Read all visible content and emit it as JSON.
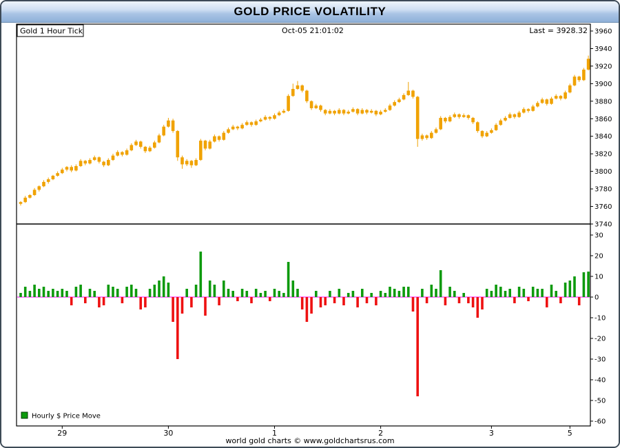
{
  "window": {
    "title": "GOLD PRICE VOLATILITY"
  },
  "header": {
    "series_label": "Gold 1 Hour Tick",
    "timestamp": "Oct-05 21:01:02",
    "last_label": "Last = 3928.32"
  },
  "legend": {
    "label": "Hourly $ Price Move"
  },
  "footer": {
    "credit": "world gold charts © www.goldchartsrus.com"
  },
  "colors": {
    "candle": "#F0A202",
    "up_bar": "#0D9A0D",
    "down_bar": "#EE1111",
    "zero_line": "#FF00FF",
    "frame": "#000000"
  },
  "chart_data": [
    {
      "type": "candlestick",
      "title": "Gold 1 Hour Tick",
      "timestamp": "Oct-05 21:01:02",
      "last": 3928.32,
      "ylim": [
        3738,
        3969
      ],
      "yticks": [
        3960,
        3940,
        3920,
        3900,
        3880,
        3860,
        3840,
        3820,
        3800,
        3780,
        3760,
        3740
      ],
      "x_tick_labels": [
        {
          "label": "29",
          "index": 9
        },
        {
          "label": "30",
          "index": 32
        },
        {
          "label": "1",
          "index": 55
        },
        {
          "label": "2",
          "index": 78
        },
        {
          "label": "3",
          "index": 102
        },
        {
          "label": "5",
          "index": 119
        }
      ],
      "candles": [
        [
          3763,
          3766,
          3761,
          3765
        ],
        [
          3765,
          3772,
          3764,
          3770
        ],
        [
          3770,
          3774,
          3769,
          3773
        ],
        [
          3773,
          3781,
          3772,
          3779
        ],
        [
          3779,
          3784,
          3777,
          3783
        ],
        [
          3783,
          3790,
          3782,
          3788
        ],
        [
          3788,
          3793,
          3786,
          3791
        ],
        [
          3791,
          3796,
          3790,
          3795
        ],
        [
          3795,
          3800,
          3794,
          3798
        ],
        [
          3798,
          3804,
          3797,
          3802
        ],
        [
          3802,
          3806,
          3800,
          3805
        ],
        [
          3805,
          3807,
          3799,
          3801
        ],
        [
          3801,
          3808,
          3800,
          3806
        ],
        [
          3806,
          3814,
          3805,
          3812
        ],
        [
          3812,
          3813,
          3807,
          3809
        ],
        [
          3809,
          3815,
          3808,
          3813
        ],
        [
          3813,
          3818,
          3812,
          3816
        ],
        [
          3816,
          3817,
          3809,
          3811
        ],
        [
          3811,
          3812,
          3805,
          3807
        ],
        [
          3807,
          3815,
          3806,
          3813
        ],
        [
          3813,
          3820,
          3812,
          3818
        ],
        [
          3818,
          3824,
          3817,
          3822
        ],
        [
          3822,
          3823,
          3817,
          3819
        ],
        [
          3819,
          3826,
          3818,
          3824
        ],
        [
          3824,
          3832,
          3823,
          3830
        ],
        [
          3830,
          3836,
          3829,
          3834
        ],
        [
          3834,
          3835,
          3826,
          3828
        ],
        [
          3828,
          3829,
          3821,
          3823
        ],
        [
          3823,
          3829,
          3822,
          3827
        ],
        [
          3827,
          3835,
          3826,
          3833
        ],
        [
          3833,
          3843,
          3832,
          3841
        ],
        [
          3841,
          3853,
          3840,
          3851
        ],
        [
          3851,
          3861,
          3850,
          3858
        ],
        [
          3858,
          3860,
          3844,
          3846
        ],
        [
          3846,
          3847,
          3812,
          3816
        ],
        [
          3816,
          3818,
          3803,
          3808
        ],
        [
          3808,
          3814,
          3806,
          3812
        ],
        [
          3812,
          3813,
          3804,
          3807
        ],
        [
          3807,
          3815,
          3806,
          3813
        ],
        [
          3813,
          3837,
          3812,
          3835
        ],
        [
          3835,
          3836,
          3824,
          3826
        ],
        [
          3826,
          3836,
          3825,
          3834
        ],
        [
          3834,
          3842,
          3833,
          3840
        ],
        [
          3840,
          3841,
          3834,
          3836
        ],
        [
          3836,
          3846,
          3835,
          3844
        ],
        [
          3844,
          3850,
          3843,
          3848
        ],
        [
          3848,
          3853,
          3847,
          3851
        ],
        [
          3851,
          3852,
          3847,
          3849
        ],
        [
          3849,
          3855,
          3848,
          3853
        ],
        [
          3853,
          3858,
          3852,
          3856
        ],
        [
          3856,
          3857,
          3851,
          3853
        ],
        [
          3853,
          3859,
          3852,
          3857
        ],
        [
          3857,
          3861,
          3856,
          3859
        ],
        [
          3859,
          3864,
          3858,
          3862
        ],
        [
          3862,
          3863,
          3858,
          3860
        ],
        [
          3860,
          3866,
          3859,
          3864
        ],
        [
          3864,
          3869,
          3863,
          3867
        ],
        [
          3867,
          3871,
          3866,
          3869
        ],
        [
          3869,
          3888,
          3868,
          3886
        ],
        [
          3886,
          3900,
          3885,
          3894
        ],
        [
          3894,
          3903,
          3893,
          3898
        ],
        [
          3898,
          3899,
          3890,
          3892
        ],
        [
          3892,
          3893,
          3878,
          3880
        ],
        [
          3880,
          3881,
          3870,
          3872
        ],
        [
          3872,
          3877,
          3871,
          3875
        ],
        [
          3875,
          3876,
          3868,
          3870
        ],
        [
          3870,
          3871,
          3864,
          3866
        ],
        [
          3866,
          3871,
          3865,
          3869
        ],
        [
          3869,
          3870,
          3864,
          3866
        ],
        [
          3866,
          3872,
          3865,
          3870
        ],
        [
          3870,
          3871,
          3864,
          3866
        ],
        [
          3866,
          3870,
          3865,
          3868
        ],
        [
          3868,
          3873,
          3867,
          3871
        ],
        [
          3871,
          3872,
          3864,
          3866
        ],
        [
          3866,
          3872,
          3865,
          3870
        ],
        [
          3870,
          3871,
          3865,
          3867
        ],
        [
          3867,
          3871,
          3866,
          3869
        ],
        [
          3869,
          3870,
          3863,
          3865
        ],
        [
          3865,
          3870,
          3864,
          3868
        ],
        [
          3868,
          3872,
          3867,
          3870
        ],
        [
          3870,
          3877,
          3869,
          3875
        ],
        [
          3875,
          3881,
          3874,
          3879
        ],
        [
          3879,
          3884,
          3878,
          3882
        ],
        [
          3882,
          3889,
          3881,
          3887
        ],
        [
          3887,
          3902,
          3886,
          3892
        ],
        [
          3892,
          3893,
          3883,
          3885
        ],
        [
          3885,
          3886,
          3828,
          3837
        ],
        [
          3837,
          3843,
          3835,
          3841
        ],
        [
          3841,
          3842,
          3836,
          3838
        ],
        [
          3838,
          3846,
          3837,
          3844
        ],
        [
          3844,
          3850,
          3843,
          3848
        ],
        [
          3848,
          3863,
          3847,
          3861
        ],
        [
          3861,
          3862,
          3855,
          3857
        ],
        [
          3857,
          3864,
          3856,
          3862
        ],
        [
          3862,
          3867,
          3861,
          3865
        ],
        [
          3865,
          3866,
          3860,
          3862
        ],
        [
          3862,
          3866,
          3861,
          3864
        ],
        [
          3864,
          3865,
          3859,
          3861
        ],
        [
          3861,
          3862,
          3854,
          3856
        ],
        [
          3856,
          3857,
          3844,
          3846
        ],
        [
          3846,
          3847,
          3838,
          3840
        ],
        [
          3840,
          3846,
          3839,
          3844
        ],
        [
          3844,
          3849,
          3843,
          3847
        ],
        [
          3847,
          3855,
          3846,
          3853
        ],
        [
          3853,
          3860,
          3852,
          3858
        ],
        [
          3858,
          3863,
          3857,
          3861
        ],
        [
          3861,
          3867,
          3860,
          3865
        ],
        [
          3865,
          3866,
          3860,
          3862
        ],
        [
          3862,
          3869,
          3861,
          3867
        ],
        [
          3867,
          3873,
          3866,
          3871
        ],
        [
          3871,
          3872,
          3867,
          3869
        ],
        [
          3869,
          3876,
          3868,
          3874
        ],
        [
          3874,
          3880,
          3873,
          3878
        ],
        [
          3878,
          3884,
          3877,
          3882
        ],
        [
          3882,
          3883,
          3875,
          3877
        ],
        [
          3877,
          3885,
          3876,
          3883
        ],
        [
          3883,
          3888,
          3882,
          3886
        ],
        [
          3886,
          3887,
          3881,
          3883
        ],
        [
          3883,
          3892,
          3882,
          3890
        ],
        [
          3890,
          3900,
          3889,
          3898
        ],
        [
          3898,
          3910,
          3897,
          3908
        ],
        [
          3908,
          3909,
          3902,
          3904
        ],
        [
          3904,
          3918,
          3903,
          3916
        ],
        [
          3916,
          3932,
          3915,
          3928.32
        ]
      ]
    },
    {
      "type": "bar",
      "name": "Hourly $ Price Move",
      "ylim": [
        -62,
        32
      ],
      "yticks": [
        30,
        20,
        10,
        0,
        -10,
        -20,
        -30,
        -40,
        -50,
        -60
      ],
      "values": [
        2,
        5,
        3,
        6,
        4,
        5,
        3,
        4,
        3,
        4,
        3,
        -4,
        5,
        6,
        -3,
        4,
        3,
        -5,
        -4,
        6,
        5,
        4,
        -3,
        5,
        6,
        4,
        -6,
        -5,
        4,
        6,
        8,
        10,
        7,
        -12,
        -30,
        -8,
        4,
        -5,
        6,
        22,
        -9,
        8,
        6,
        -4,
        8,
        4,
        3,
        -2,
        4,
        3,
        -3,
        4,
        2,
        3,
        -2,
        4,
        3,
        2,
        17,
        8,
        4,
        -6,
        -12,
        -8,
        3,
        -5,
        -4,
        3,
        -3,
        4,
        -4,
        2,
        3,
        -5,
        4,
        -3,
        2,
        -4,
        3,
        2,
        5,
        4,
        3,
        5,
        5,
        -7,
        -48,
        4,
        -3,
        6,
        4,
        13,
        -4,
        5,
        3,
        -3,
        2,
        -3,
        -5,
        -10,
        -6,
        4,
        3,
        6,
        5,
        3,
        4,
        -3,
        5,
        4,
        -2,
        5,
        4,
        4,
        -5,
        6,
        3,
        -3,
        7,
        8,
        10,
        -4,
        12,
        12.32
      ]
    }
  ]
}
